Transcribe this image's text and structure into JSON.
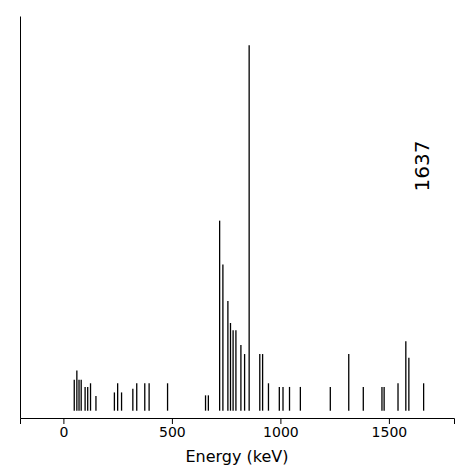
{
  "chart_data": {
    "type": "stem",
    "xlabel": "Energy (keV)",
    "color": "#000000",
    "x": [
      50,
      62,
      72,
      82,
      100,
      112,
      125,
      150,
      235,
      250,
      268,
      320,
      338,
      375,
      395,
      480,
      655,
      668,
      720,
      735,
      758,
      770,
      782,
      795,
      818,
      835,
      856,
      905,
      918,
      945,
      995,
      1012,
      1042,
      1092,
      1230,
      1315,
      1382,
      1468,
      1478,
      1542,
      1578,
      1592,
      1660
    ],
    "values": [
      0.085,
      0.11,
      0.085,
      0.085,
      0.065,
      0.065,
      0.075,
      0.04,
      0.05,
      0.075,
      0.05,
      0.06,
      0.075,
      0.075,
      0.075,
      0.075,
      0.042,
      0.042,
      0.52,
      0.4,
      0.3,
      0.24,
      0.22,
      0.22,
      0.18,
      0.155,
      1.0,
      0.155,
      0.155,
      0.075,
      0.065,
      0.065,
      0.065,
      0.065,
      0.065,
      0.155,
      0.065,
      0.065,
      0.065,
      0.075,
      0.19,
      0.145,
      0.075
    ],
    "xlim": [
      -200,
      1800
    ],
    "ylim": [
      -0.02,
      1.08
    ],
    "xticks": [
      0,
      500,
      1000,
      1500
    ],
    "tick_labels": "x",
    "annotations": [
      {
        "text": "1637",
        "x": 1660,
        "y": 0.6
      }
    ]
  }
}
